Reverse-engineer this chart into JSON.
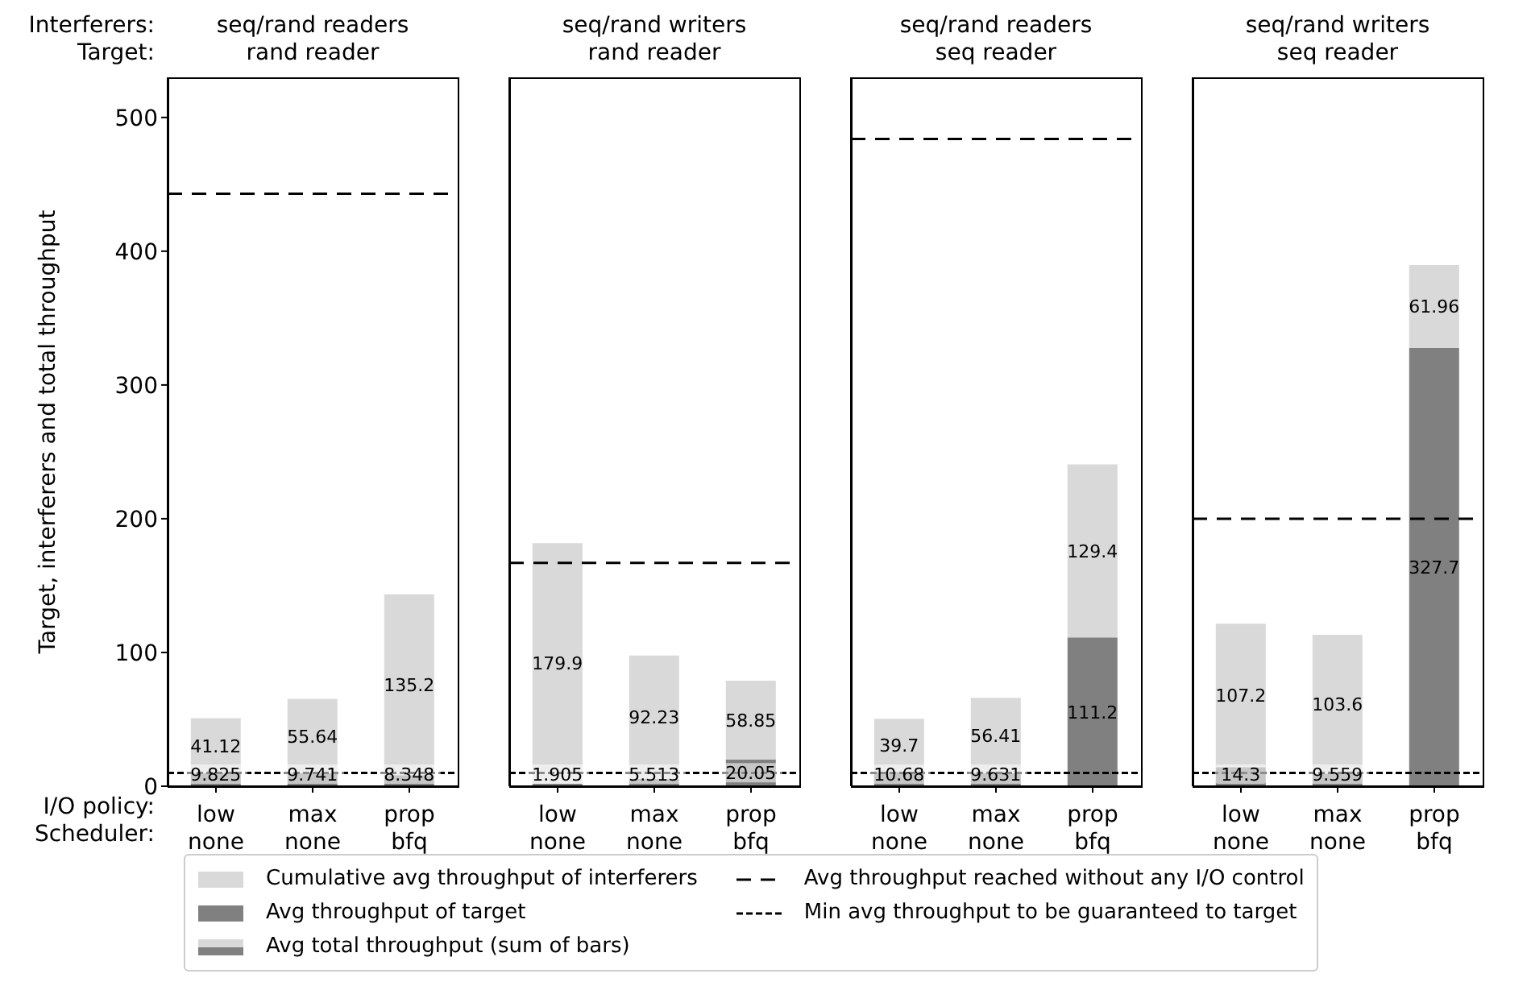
{
  "chart_data": [
    {
      "type": "bar",
      "stacked": true,
      "title": "seq/rand readers\nrand reader",
      "ylabel": "Target, interferers and total throughput",
      "categories": [
        "low\nnone",
        "max\nnone",
        "prop\nbfq"
      ],
      "series": [
        {
          "name": "Avg throughput of target",
          "color": "#808080",
          "values": [
            9.825,
            9.741,
            8.348
          ]
        },
        {
          "name": "Cumulative avg throughput of interferers",
          "color": "#d9d9d9",
          "values": [
            41.12,
            55.64,
            135.2
          ]
        }
      ],
      "ylim": [
        0,
        530
      ],
      "yticks": [
        0,
        100,
        200,
        300,
        400,
        500
      ],
      "data_labels": true,
      "legend": "bottom",
      "ref_lines": [
        {
          "axis": "y",
          "value": 443,
          "label": "Avg throughput reached without any I/O control",
          "line_style": "dashed",
          "color": "#000000"
        },
        {
          "axis": "y",
          "value": 10,
          "label": "Min avg throughput to be guaranteed to target",
          "line_style": "dotted",
          "color": "#000000"
        }
      ],
      "annotations": [
        "Interferers:\nTarget:",
        "I/O policy:\nScheduler:",
        "Avg total throughput (sum of bars)"
      ]
    },
    {
      "type": "bar",
      "stacked": true,
      "title": "seq/rand writers\nrand reader",
      "categories": [
        "low\nnone",
        "max\nnone",
        "prop\nbfq"
      ],
      "series": [
        {
          "color": "#808080",
          "values": [
            1.905,
            5.513,
            20.05
          ]
        },
        {
          "color": "#d9d9d9",
          "values": [
            179.9,
            92.23,
            58.85
          ]
        }
      ],
      "ylim": [
        0,
        530
      ],
      "yticks": [
        0,
        100,
        200,
        300,
        400,
        500
      ],
      "tick_labels": "x",
      "data_labels": true,
      "ref_lines": [
        {
          "axis": "y",
          "value": 167,
          "line_style": "dashed",
          "color": "#000000"
        },
        {
          "axis": "y",
          "value": 10,
          "line_style": "dotted",
          "color": "#000000"
        }
      ]
    },
    {
      "type": "bar",
      "stacked": true,
      "title": "seq/rand readers\nseq reader",
      "categories": [
        "low\nnone",
        "max\nnone",
        "prop\nbfq"
      ],
      "series": [
        {
          "color": "#808080",
          "values": [
            10.68,
            9.631,
            111.2
          ]
        },
        {
          "color": "#d9d9d9",
          "values": [
            39.7,
            56.41,
            129.4
          ]
        }
      ],
      "ylim": [
        0,
        530
      ],
      "yticks": [
        0,
        100,
        200,
        300,
        400,
        500
      ],
      "tick_labels": "x",
      "data_labels": true,
      "ref_lines": [
        {
          "axis": "y",
          "value": 484,
          "line_style": "dashed",
          "color": "#000000"
        },
        {
          "axis": "y",
          "value": 10,
          "line_style": "dotted",
          "color": "#000000"
        }
      ]
    },
    {
      "type": "bar",
      "stacked": true,
      "title": "seq/rand writers\nseq reader",
      "categories": [
        "low\nnone",
        "max\nnone",
        "prop\nbfq"
      ],
      "series": [
        {
          "color": "#808080",
          "values": [
            14.3,
            9.559,
            327.7
          ]
        },
        {
          "color": "#d9d9d9",
          "values": [
            107.2,
            103.6,
            61.96
          ]
        }
      ],
      "ylim": [
        0,
        530
      ],
      "yticks": [
        0,
        100,
        200,
        300,
        400,
        500
      ],
      "tick_labels": "x",
      "data_labels": true,
      "ref_lines": [
        {
          "axis": "y",
          "value": 200,
          "line_style": "dashed",
          "color": "#000000"
        },
        {
          "axis": "y",
          "value": 10,
          "line_style": "dotted",
          "color": "#000000"
        }
      ]
    }
  ]
}
